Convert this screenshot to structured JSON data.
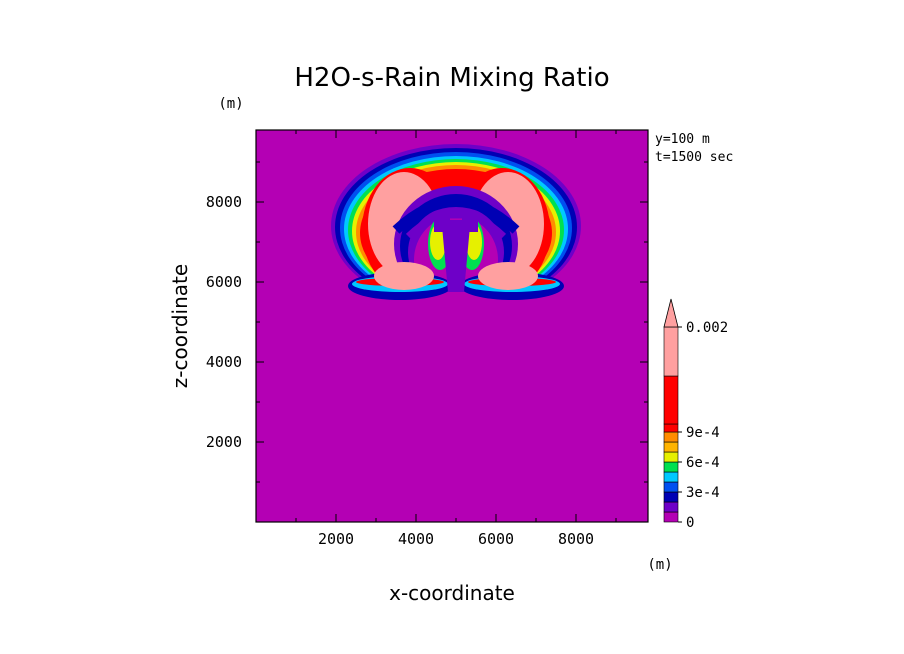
{
  "chart_data": {
    "type": "heatmap",
    "title": "H2O-s-Rain Mixing Ratio",
    "xlabel": "x-coordinate",
    "ylabel": "z-coordinate",
    "x_unit": "(m)",
    "y_unit": "(m)",
    "annotation_y": "y=100 m",
    "annotation_t": "t=1500 sec",
    "xlim": [
      0,
      9800
    ],
    "ylim": [
      0,
      9800
    ],
    "xticks": [
      2000,
      4000,
      6000,
      8000
    ],
    "yticks": [
      2000,
      4000,
      6000,
      8000
    ],
    "background_value": 0,
    "colorbar": {
      "levels": [
        0,
        0.0001,
        0.0002,
        0.0003,
        0.0004,
        0.0005,
        0.0006,
        0.0007,
        0.0008,
        0.0009,
        0.001,
        0.002
      ],
      "labels": [
        {
          "value": 0,
          "text": "0"
        },
        {
          "value": 0.0003,
          "text": "3e-4"
        },
        {
          "value": 0.0006,
          "text": "6e-4"
        },
        {
          "value": 0.0009,
          "text": "9e-4"
        },
        {
          "value": 0.002,
          "text": "0.002"
        }
      ],
      "colors": [
        "#b400b4",
        "#6e00c8",
        "#0000b4",
        "#0050f0",
        "#00c8ff",
        "#00e050",
        "#e6f000",
        "#ffb400",
        "#ff8c00",
        "#ff0000",
        "#ff0000",
        "#ffa0a0"
      ],
      "extend": "max"
    },
    "field": {
      "description_free": true,
      "cap_center": [
        5000,
        7400
      ],
      "lobe_left_center": [
        3850,
        7100
      ],
      "lobe_right_center": [
        6150,
        7100
      ]
    }
  }
}
